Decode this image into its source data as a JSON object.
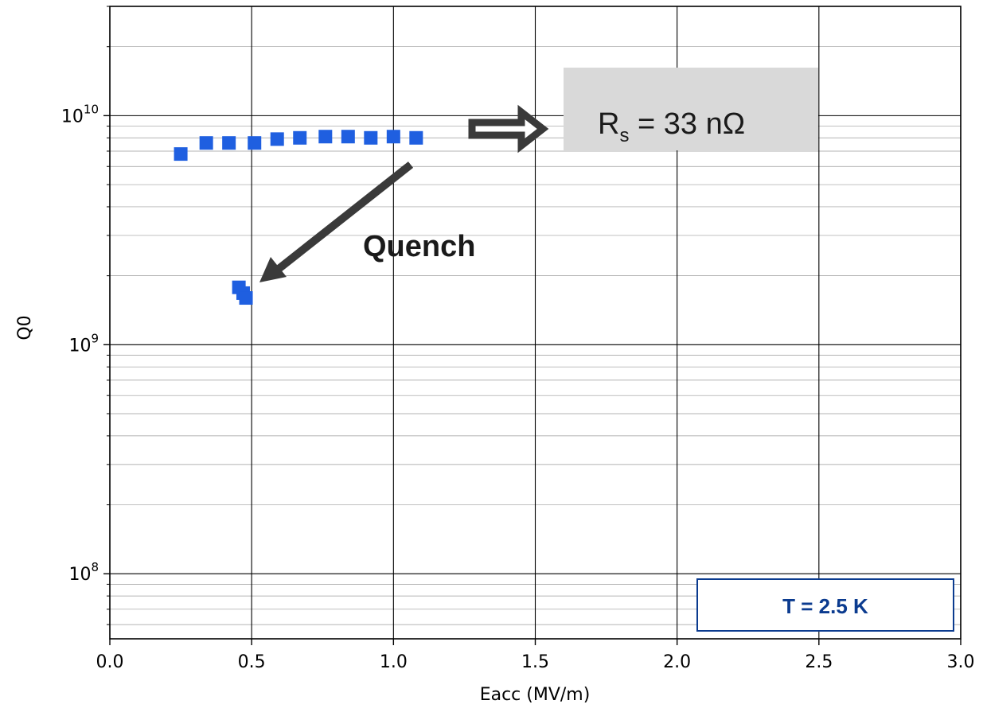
{
  "chart_data": {
    "type": "scatter",
    "xlabel": "Eacc (MV/m)",
    "ylabel": "Q0",
    "xlim": [
      0.0,
      3.0
    ],
    "ylim": [
      52000000.0,
      30000000000.0
    ],
    "yscale": "log",
    "grid": true,
    "x_ticks": [
      "0.0",
      "0.5",
      "1.0",
      "1.5",
      "2.0",
      "2.5",
      "3.0"
    ],
    "x_tick_values": [
      0.0,
      0.5,
      1.0,
      1.5,
      2.0,
      2.5,
      3.0
    ],
    "y_ticks": [
      {
        "base": "10",
        "exp": "8",
        "value": 100000000.0
      },
      {
        "base": "10",
        "exp": "9",
        "value": 1000000000.0
      },
      {
        "base": "10",
        "exp": "10",
        "value": 10000000000.0
      }
    ],
    "series": [
      {
        "color": "#1f5fe0",
        "marker": "square",
        "x": [
          0.25,
          0.34,
          0.42,
          0.51,
          0.59,
          0.67,
          0.76,
          0.84,
          0.92,
          1.0,
          1.08,
          0.455,
          0.47,
          0.48
        ],
        "y": [
          6800000000.0,
          7600000000.0,
          7600000000.0,
          7600000000.0,
          7900000000.0,
          8000000000.0,
          8100000000.0,
          8100000000.0,
          8000000000.0,
          8100000000.0,
          8000000000.0,
          1780000000.0,
          1680000000.0,
          1600000000.0
        ]
      }
    ],
    "annotations": {
      "quench": "Quench",
      "rs_main": "R",
      "rs_sub": "s",
      "rs_rest": " = 33 nΩ",
      "temperature": "T = 2.5 K"
    },
    "colors": {
      "marker": "#1f5fe0",
      "arrow": "#3a3a3a",
      "rs_box": "#d9d9d9",
      "temp_text": "#0b3b8f",
      "temp_border": "#0b3b8f"
    }
  }
}
